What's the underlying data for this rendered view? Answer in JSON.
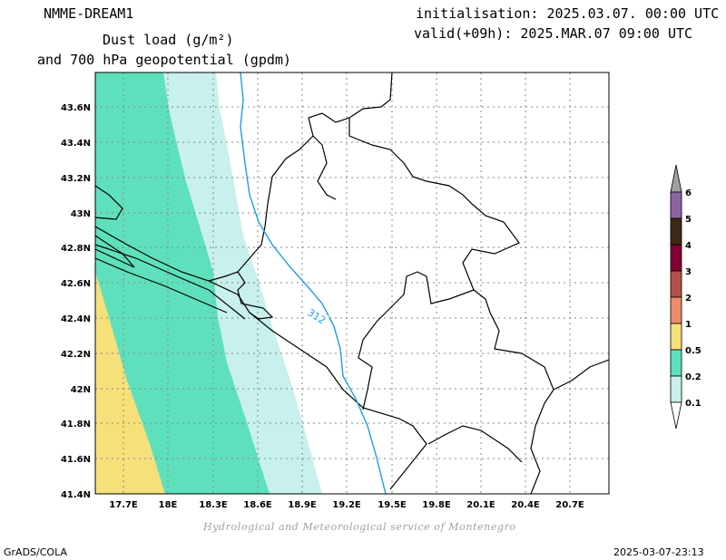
{
  "header": {
    "model": "NMME-DREAM1",
    "line1": "Dust load (g/m²)",
    "line2": "and 700 hPa geopotential (gpdm)",
    "init": "initialisation: 2025.03.07. 00:00 UTC",
    "valid": "valid(+09h): 2025.MAR.07 09:00 UTC"
  },
  "credit": "Hydrological and Meteorological service of Montenegro",
  "footer": {
    "left": "GrADS/COLA",
    "right": "2025-03-07-23:13"
  },
  "map": {
    "lat_labels": [
      "43.6N",
      "43.4N",
      "43.2N",
      "43N",
      "42.8N",
      "42.6N",
      "42.4N",
      "42.2N",
      "42N",
      "41.8N",
      "41.6N",
      "41.4N"
    ],
    "lon_labels": [
      "17.7E",
      "18E",
      "18.3E",
      "18.6E",
      "18.9E",
      "19.2E",
      "19.5E",
      "19.8E",
      "20.1E",
      "20.4E",
      "20.7E"
    ],
    "contour_label": "312",
    "contour_color": "#1e9ee0",
    "fill_colors": {
      "0.1": "#c8f0ec",
      "0.2": "#5ee0bc",
      "0.5": "#f5e07a"
    }
  },
  "colorbar": {
    "labels": [
      "6",
      "5",
      "4",
      "3",
      "2",
      "1",
      "0.5",
      "0.2",
      "0.1"
    ],
    "colors": [
      "#a0a0a0",
      "#8c64a0",
      "#3c2814",
      "#820032",
      "#b4504b",
      "#ee8c6e",
      "#f5e07a",
      "#5ee0bc",
      "#c8f0ec",
      "#ffffff"
    ]
  }
}
